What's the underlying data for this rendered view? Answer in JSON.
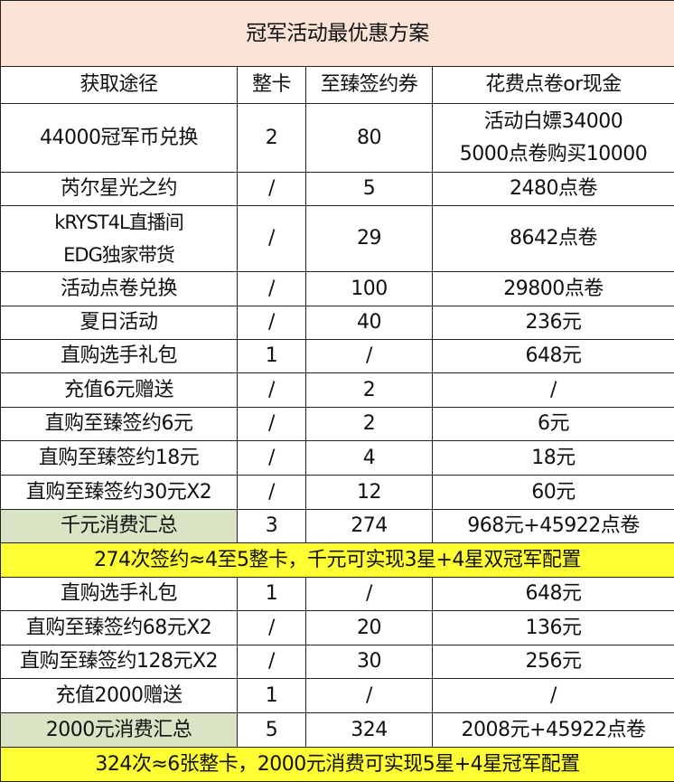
{
  "title": "冠军活动最优惠方案",
  "headers": [
    "获取途径",
    "整卡",
    "至臻签约券",
    "花费点卷or现金"
  ],
  "colors": {
    "title_bg": "#fbe4d5",
    "summary_bg": "#d8e4c4",
    "note_bg": "#ffff33"
  },
  "rows": [
    {
      "type": "data",
      "cells": [
        "44000冠军币兑换",
        "2",
        "80",
        "活动白嫖34000\n5000点卷购买10000"
      ]
    },
    {
      "type": "data",
      "cells": [
        "芮尔星光之约",
        "/",
        "5",
        "2480点卷"
      ]
    },
    {
      "type": "data",
      "cells": [
        "kRYST4L直播间\nEDG独家带货",
        "/",
        "29",
        "8642点卷"
      ]
    },
    {
      "type": "data",
      "cells": [
        "活动点卷兑换",
        "/",
        "100",
        "29800点卷"
      ]
    },
    {
      "type": "data",
      "cells": [
        "夏日活动",
        "/",
        "40",
        "236元"
      ]
    },
    {
      "type": "data",
      "cells": [
        "直购选手礼包",
        "1",
        "/",
        "648元"
      ]
    },
    {
      "type": "data",
      "cells": [
        "充值6元赠送",
        "/",
        "2",
        "/"
      ]
    },
    {
      "type": "data",
      "cells": [
        "直购至臻签约6元",
        "/",
        "2",
        "6元"
      ]
    },
    {
      "type": "data",
      "cells": [
        "直购至臻签约18元",
        "/",
        "4",
        "18元"
      ]
    },
    {
      "type": "data",
      "cells": [
        "直购至臻签约30元X2",
        "/",
        "12",
        "60元"
      ]
    },
    {
      "type": "summary",
      "cells": [
        "千元消费汇总",
        "3",
        "274",
        "968元+45922点卷"
      ]
    },
    {
      "type": "note",
      "cells": [
        "274次签约≈4至5整卡，千元可实现3星+4星双冠军配置"
      ]
    },
    {
      "type": "data",
      "cells": [
        "直购选手礼包",
        "1",
        "/",
        "648元"
      ]
    },
    {
      "type": "data",
      "cells": [
        "直购至臻签约68元X2",
        "/",
        "20",
        "136元"
      ]
    },
    {
      "type": "data",
      "cells": [
        "直购至臻签约128元X2",
        "/",
        "30",
        "256元"
      ]
    },
    {
      "type": "data",
      "cells": [
        "充值2000赠送",
        "1",
        "/",
        "/"
      ]
    },
    {
      "type": "summary",
      "cells": [
        "2000元消费汇总",
        "5",
        "324",
        "2008元+45922点卷"
      ]
    },
    {
      "type": "note",
      "cells": [
        "324次≈6张整卡，2000元消费可实现5星+4星冠军配置"
      ]
    }
  ]
}
